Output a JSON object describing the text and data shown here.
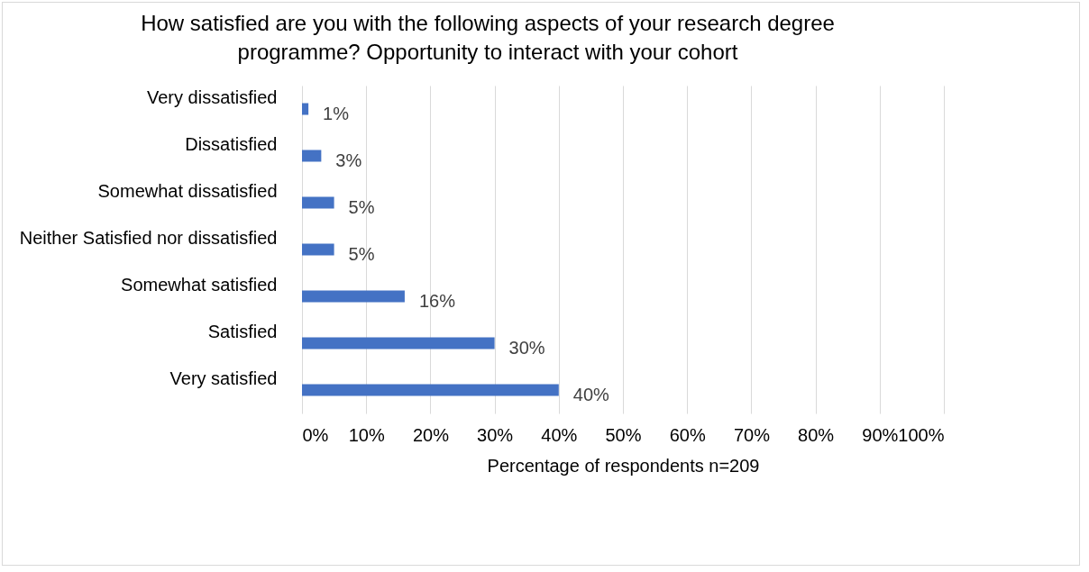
{
  "chart_data": {
    "type": "bar",
    "orientation": "horizontal",
    "title": "How satisfied are you with the following aspects of your research degree programme? Opportunity to interact with your cohort",
    "xlabel": "Percentage of respondents n=209",
    "categories": [
      "Very dissatisfied",
      "Dissatisfied",
      "Somewhat dissatisfied",
      "Neither Satisfied nor dissatisfied",
      "Somewhat satisfied",
      "Satisfied",
      "Very satisfied"
    ],
    "values": [
      1,
      3,
      5,
      5,
      16,
      30,
      40
    ],
    "value_labels": [
      "1%",
      "3%",
      "5%",
      "5%",
      "16%",
      "30%",
      "40%"
    ],
    "color": "#4472c4",
    "xlim": [
      0,
      100
    ],
    "xticks": [
      {
        "value": 0,
        "label": "0%"
      },
      {
        "value": 10,
        "label": "10%"
      },
      {
        "value": 20,
        "label": "20%"
      },
      {
        "value": 30,
        "label": "30%"
      },
      {
        "value": 40,
        "label": "40%"
      },
      {
        "value": 50,
        "label": "50%"
      },
      {
        "value": 60,
        "label": "60%"
      },
      {
        "value": 70,
        "label": "70%"
      },
      {
        "value": 80,
        "label": "80%"
      },
      {
        "value": 90,
        "label": "90%"
      },
      {
        "value": 100,
        "label": "100%"
      }
    ],
    "grid": "x"
  }
}
